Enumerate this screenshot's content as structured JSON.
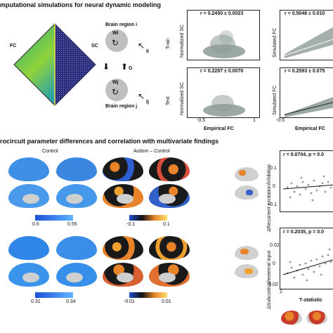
{
  "section_a": {
    "title": "mputational simulations for neural dynamic modeling",
    "fc_label": "FC",
    "sc_label": "SC"
  },
  "model": {
    "region_i": "Brain region i",
    "region_j": "Brain region j",
    "w_i": "Wi",
    "w_j": "Wj",
    "g": "G",
    "i_i": "Ii",
    "i_j": "Ij"
  },
  "scatter": {
    "train_label": "Train",
    "test_label": "Test",
    "ylabel_sc": "Normalized SC",
    "ylabel_fc": "Simulated FC",
    "xlabel": "Empirical FC",
    "stat_train_sc": "r = 0.2450 ± 0.0023",
    "stat_train_fc": "r = 0.5048 ± 0.010",
    "stat_test_sc": "r = 0.2287 ± 0.0070",
    "stat_test_fc": "r = 0.2593 ± 0.075",
    "xtick_min": "-0.5",
    "xtick_max": "1",
    "xtick_min_right": "-0.5"
  },
  "section_b": {
    "title": "rocircuit parameter differences and correlation with multivariate findings",
    "control_label": "Control",
    "autism_label": "Autism – Control",
    "cbar_top_control": [
      "0.5",
      "0.55"
    ],
    "cbar_top_diff": [
      "-0.1",
      "0.1"
    ],
    "cbar_bot_control": [
      "0.31",
      "0.34"
    ],
    "cbar_bot_diff": [
      "-0.01",
      "0.01"
    ]
  },
  "corr": {
    "stat_top": "r = 0.0704, p = 0.0",
    "stat_bot": "r = 0.2035, p = 0.0",
    "ylabel_top": "ΔRecurrent excitation/inhibition",
    "ylabel_bot": "ΔSubcortical/external input",
    "ytick_top": [
      "0.1",
      "0",
      "-0.1"
    ],
    "ytick_bot": [
      "0.02",
      "0",
      "-0.02"
    ],
    "xtick": "2",
    "xlabel": "T-statistic"
  },
  "colors": {
    "control_blue": "#3f8fe6",
    "diff_dark": "#1a1a1a",
    "diff_orange": "#e8832a",
    "scatter_gray": "#8c9a98"
  }
}
